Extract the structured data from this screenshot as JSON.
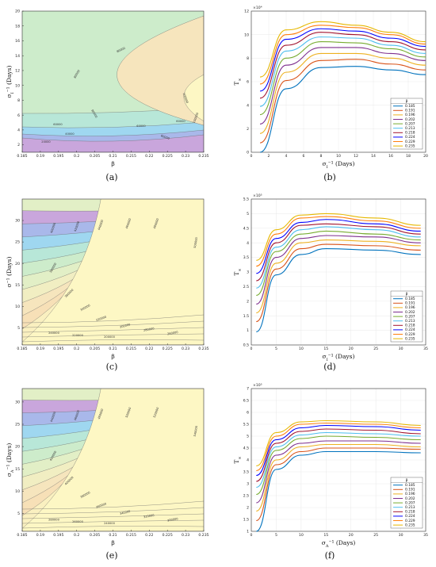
{
  "colors": {
    "contour_levels": [
      "#c9a6dc",
      "#a9b8ea",
      "#9fd7f0",
      "#b8e7d8",
      "#cdeccb",
      "#e2efc6",
      "#f1eec2",
      "#f6e5bd",
      "#f7e0b7",
      "#faf0c0",
      "#fdf7c4"
    ],
    "series": [
      "#0072bd",
      "#d95319",
      "#edb120",
      "#7e2f8e",
      "#77ac30",
      "#4dbeee",
      "#a2142f",
      "#0000ff",
      "#ff7f0e",
      "#e6b800"
    ]
  },
  "chart_data": [
    {
      "id": "a",
      "type": "contour",
      "caption": "(a)",
      "xlabel": "β",
      "ylabel": "σ_I⁻¹ (Days)",
      "xlim": [
        0.185,
        0.235
      ],
      "ylim": [
        1,
        20
      ],
      "xticks": [
        "0.185",
        "0.19",
        "0.195",
        "0.2",
        "0.205",
        "0.21",
        "0.215",
        "0.22",
        "0.225",
        "0.23",
        "0.235"
      ],
      "yticks": [
        "2",
        "4",
        "6",
        "8",
        "10",
        "12",
        "14",
        "16",
        "18",
        "20"
      ],
      "contour_labels": [
        "20000",
        "40000",
        "60000",
        "60000",
        "60000",
        "80000",
        "80000",
        "80000",
        "80000",
        "100000",
        "100000"
      ]
    },
    {
      "id": "b",
      "type": "line",
      "caption": "(b)",
      "xlabel": "σ_I⁻¹ (Days)",
      "ylabel": "T_∞",
      "exponent": "×10⁴",
      "xlim": [
        0,
        20
      ],
      "ylim": [
        0,
        12
      ],
      "xticks": [
        "0",
        "2",
        "4",
        "6",
        "8",
        "10",
        "12",
        "14",
        "16",
        "18",
        "20"
      ],
      "yticks": [
        "0",
        "2",
        "4",
        "6",
        "8",
        "10",
        "12"
      ],
      "legend_title": "β",
      "series": [
        {
          "name": "0.185",
          "values": [
            0.0,
            5.4,
            7.2,
            7.3,
            7.0,
            6.6
          ]
        },
        {
          "name": "0.191",
          "values": [
            0.8,
            6.1,
            7.8,
            7.9,
            7.5,
            7.0
          ]
        },
        {
          "name": "0.196",
          "values": [
            1.6,
            6.8,
            8.4,
            8.4,
            8.0,
            7.4
          ]
        },
        {
          "name": "0.202",
          "values": [
            2.4,
            7.4,
            8.9,
            8.9,
            8.4,
            7.8
          ]
        },
        {
          "name": "0.207",
          "values": [
            3.2,
            8.0,
            9.4,
            9.3,
            8.8,
            8.1
          ]
        },
        {
          "name": "0.213",
          "values": [
            3.9,
            8.6,
            9.8,
            9.7,
            9.1,
            8.4
          ]
        },
        {
          "name": "0.218",
          "values": [
            4.6,
            9.1,
            10.2,
            10.0,
            9.4,
            8.7
          ]
        },
        {
          "name": "0.224",
          "values": [
            5.2,
            9.6,
            10.5,
            10.3,
            9.7,
            9.0
          ]
        },
        {
          "name": "0.229",
          "values": [
            5.8,
            10.0,
            10.8,
            10.6,
            10.0,
            9.2
          ]
        },
        {
          "name": "0.235",
          "values": [
            6.4,
            10.4,
            11.1,
            10.8,
            10.2,
            9.4
          ]
        }
      ],
      "x": [
        1,
        4,
        8,
        12,
        16,
        20
      ]
    },
    {
      "id": "c",
      "type": "contour",
      "caption": "(c)",
      "xlabel": "β",
      "ylabel": "σ⁻¹ (Days)",
      "xlim": [
        0.185,
        0.235
      ],
      "ylim": [
        1,
        35
      ],
      "xticks": [
        "0.185",
        "0.19",
        "0.195",
        "0.2",
        "0.205",
        "0.21",
        "0.215",
        "0.22",
        "0.225",
        "0.23",
        "0.235"
      ],
      "yticks": [
        "5",
        "10",
        "15",
        "20",
        "25",
        "30"
      ],
      "contour_labels": [
        "400000",
        "420000",
        "440000",
        "460000",
        "480000",
        "500000",
        "380000",
        "360000",
        "340000",
        "320000",
        "300000",
        "280000",
        "260000",
        "240000",
        "220000",
        "200000"
      ]
    },
    {
      "id": "d",
      "type": "line",
      "caption": "(d)",
      "xlabel": "σ_I⁻¹ (Days)",
      "ylabel": "T_∞",
      "exponent": "×10⁵",
      "xlim": [
        0,
        35
      ],
      "ylim": [
        0.5,
        5.5
      ],
      "xticks": [
        "0",
        "5",
        "10",
        "15",
        "20",
        "25",
        "30",
        "35"
      ],
      "yticks": [
        "0.5",
        "1",
        "1.5",
        "2",
        "2.5",
        "3",
        "3.5",
        "4",
        "4.5",
        "5",
        "5.5"
      ],
      "legend_title": "β",
      "series": [
        {
          "name": "0.185",
          "values": [
            0.95,
            2.9,
            3.6,
            3.8,
            3.75,
            3.6
          ]
        },
        {
          "name": "0.191",
          "values": [
            1.3,
            3.1,
            3.8,
            3.95,
            3.9,
            3.75
          ]
        },
        {
          "name": "0.196",
          "values": [
            1.6,
            3.3,
            4.0,
            4.1,
            4.05,
            3.9
          ]
        },
        {
          "name": "0.202",
          "values": [
            1.9,
            3.5,
            4.15,
            4.25,
            4.2,
            4.0
          ]
        },
        {
          "name": "0.207",
          "values": [
            2.2,
            3.7,
            4.3,
            4.4,
            4.3,
            4.1
          ]
        },
        {
          "name": "0.213",
          "values": [
            2.45,
            3.85,
            4.45,
            4.55,
            4.45,
            4.2
          ]
        },
        {
          "name": "0.218",
          "values": [
            2.7,
            4.0,
            4.6,
            4.65,
            4.55,
            4.3
          ]
        },
        {
          "name": "0.224",
          "values": [
            2.95,
            4.15,
            4.7,
            4.8,
            4.65,
            4.4
          ]
        },
        {
          "name": "0.229",
          "values": [
            3.2,
            4.3,
            4.85,
            4.9,
            4.75,
            4.5
          ]
        },
        {
          "name": "0.235",
          "values": [
            3.4,
            4.45,
            4.95,
            5.0,
            4.85,
            4.6
          ]
        }
      ],
      "x": [
        1,
        5,
        10,
        15,
        25,
        34
      ]
    },
    {
      "id": "e",
      "type": "contour",
      "caption": "(e)",
      "xlabel": "β",
      "ylabel": "σ_A⁻¹ (Days)",
      "xlim": [
        0.185,
        0.235
      ],
      "ylim": [
        1,
        33
      ],
      "xticks": [
        "0.185",
        "0.19",
        "0.195",
        "0.2",
        "0.205",
        "0.21",
        "0.215",
        "0.22",
        "0.225",
        "0.23",
        "0.235"
      ],
      "yticks": [
        "5",
        "10",
        "15",
        "20",
        "25",
        "30"
      ],
      "contour_labels": [
        "440000",
        "460000",
        "480000",
        "500000",
        "520000",
        "540000",
        "420000",
        "400000",
        "380000",
        "360000",
        "340000",
        "320000",
        "300000",
        "280000",
        "260000",
        "240000"
      ]
    },
    {
      "id": "f",
      "type": "line",
      "caption": "(f)",
      "xlabel": "σ_A⁻¹ (Days)",
      "ylabel": "T_∞",
      "exponent": "×10⁵",
      "xlim": [
        0,
        35
      ],
      "ylim": [
        1,
        7
      ],
      "xticks": [
        "0",
        "5",
        "10",
        "15",
        "20",
        "25",
        "30",
        "35"
      ],
      "yticks": [
        "1",
        "1.5",
        "2",
        "2.5",
        "3",
        "3.5",
        "4",
        "4.5",
        "5",
        "5.5",
        "6",
        "6.5",
        "7"
      ],
      "legend_title": "β",
      "series": [
        {
          "name": "0.185",
          "values": [
            1.0,
            3.6,
            4.2,
            4.35,
            4.35,
            4.3
          ]
        },
        {
          "name": "0.191",
          "values": [
            1.45,
            3.8,
            4.35,
            4.5,
            4.5,
            4.45
          ]
        },
        {
          "name": "0.196",
          "values": [
            1.85,
            4.0,
            4.55,
            4.65,
            4.65,
            4.55
          ]
        },
        {
          "name": "0.202",
          "values": [
            2.2,
            4.2,
            4.7,
            4.8,
            4.8,
            4.7
          ]
        },
        {
          "name": "0.207",
          "values": [
            2.55,
            4.4,
            4.9,
            5.0,
            4.95,
            4.85
          ]
        },
        {
          "name": "0.213",
          "values": [
            2.85,
            4.55,
            5.05,
            5.15,
            5.1,
            5.0
          ]
        },
        {
          "name": "0.218",
          "values": [
            3.1,
            4.7,
            5.2,
            5.3,
            5.25,
            5.1
          ]
        },
        {
          "name": "0.224",
          "values": [
            3.35,
            4.85,
            5.35,
            5.45,
            5.4,
            5.25
          ]
        },
        {
          "name": "0.229",
          "values": [
            3.55,
            5.0,
            5.5,
            5.55,
            5.5,
            5.35
          ]
        },
        {
          "name": "0.235",
          "values": [
            3.75,
            5.15,
            5.6,
            5.65,
            5.6,
            5.45
          ]
        }
      ],
      "x": [
        1,
        5,
        10,
        15,
        25,
        34
      ]
    }
  ]
}
